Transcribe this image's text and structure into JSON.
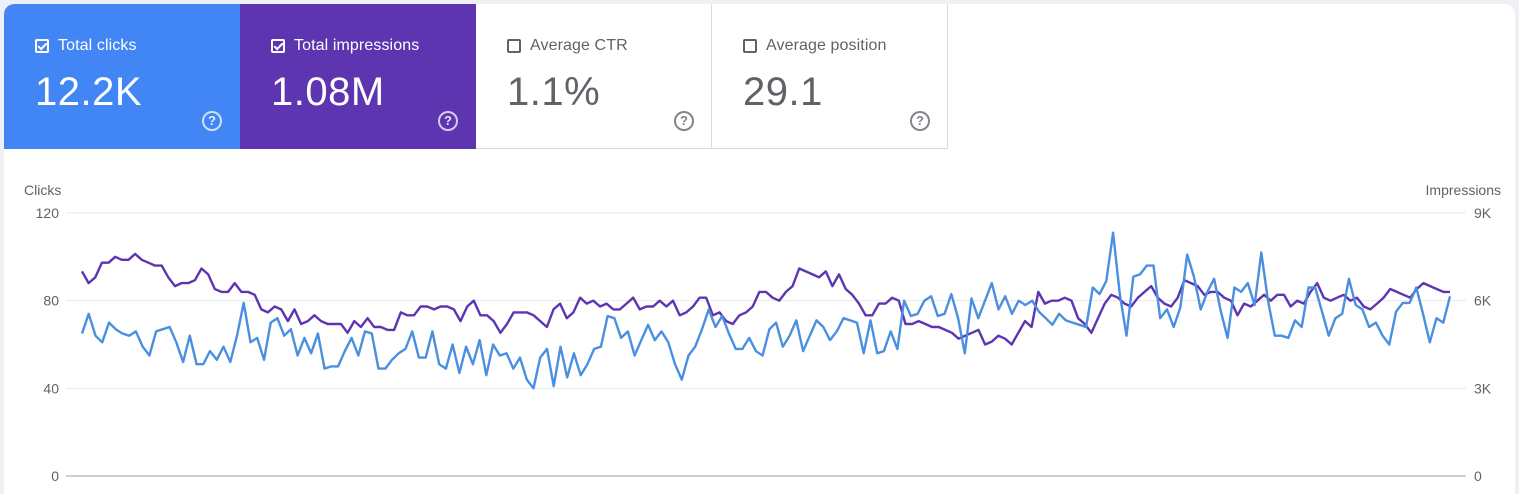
{
  "metrics": [
    {
      "label": "Total clicks",
      "value": "12.2K",
      "selected": true,
      "color": "#4285f4"
    },
    {
      "label": "Total impressions",
      "value": "1.08M",
      "selected": true,
      "color": "#5e35b1"
    },
    {
      "label": "Average CTR",
      "value": "1.1%",
      "selected": false,
      "color": "#ffffff"
    },
    {
      "label": "Average position",
      "value": "29.1",
      "selected": false,
      "color": "#ffffff"
    }
  ],
  "help_icon": "help-circle-icon",
  "chart_data": {
    "type": "line",
    "legend": "none",
    "grid": true,
    "left_axis": {
      "label": "Clicks",
      "range": [
        0,
        120
      ],
      "ticks": [
        "0",
        "40",
        "80",
        "120"
      ]
    },
    "right_axis": {
      "label": "Impressions",
      "range": [
        0,
        9000
      ],
      "ticks": [
        "0",
        "3K",
        "6K",
        "9K"
      ]
    },
    "series": [
      {
        "axis": "left",
        "color": "#4a8fe0",
        "values": [
          65,
          74,
          64,
          61,
          70,
          67,
          65,
          64,
          66,
          59,
          55,
          66,
          67,
          68,
          61,
          52,
          64,
          51,
          51,
          57,
          53,
          59,
          52,
          64,
          79,
          61,
          63,
          53,
          70,
          72,
          64,
          67,
          55,
          63,
          56,
          65,
          49,
          50,
          50,
          57,
          63,
          55,
          66,
          65,
          49,
          49,
          53,
          56,
          58,
          66,
          54,
          54,
          66,
          51,
          49,
          60,
          47,
          59,
          51,
          62,
          46,
          60,
          55,
          56,
          49,
          54,
          44,
          40,
          54,
          58,
          41,
          59,
          45,
          56,
          46,
          51,
          58,
          59,
          73,
          72,
          63,
          66,
          55,
          62,
          69,
          62,
          66,
          61,
          51,
          44,
          55,
          59,
          67,
          76,
          68,
          73,
          65,
          58,
          58,
          63,
          57,
          55,
          67,
          70,
          59,
          64,
          71,
          57,
          64,
          71,
          68,
          62,
          66,
          72,
          71,
          70,
          56,
          71,
          56,
          57,
          66,
          58,
          80,
          73,
          74,
          80,
          82,
          73,
          74,
          83,
          72,
          56,
          81,
          72,
          80,
          88,
          76,
          82,
          74,
          80,
          78,
          80,
          75,
          72,
          69,
          74,
          71,
          70,
          69,
          68,
          86,
          83,
          89,
          111,
          83,
          64,
          91,
          92,
          96,
          96,
          72,
          76,
          68,
          77,
          101,
          91,
          76,
          84,
          90,
          75,
          63,
          86,
          84,
          88,
          78,
          102,
          80,
          64,
          64,
          63,
          71,
          68,
          86,
          86,
          75,
          64,
          72,
          74,
          90,
          78,
          76,
          68,
          70,
          64,
          60,
          75,
          79,
          79,
          86,
          74,
          61,
          72,
          70,
          82
        ]
      },
      {
        "axis": "right",
        "color": "#5e35b1",
        "values": [
          7000,
          6600,
          6800,
          7300,
          7300,
          7500,
          7400,
          7400,
          7600,
          7400,
          7300,
          7200,
          7200,
          6800,
          6500,
          6600,
          6600,
          6700,
          7100,
          6900,
          6400,
          6300,
          6300,
          6600,
          6300,
          6300,
          6200,
          5700,
          5600,
          5800,
          5700,
          5300,
          5700,
          5200,
          5300,
          5500,
          5300,
          5200,
          5200,
          5200,
          4900,
          5300,
          5100,
          5400,
          5100,
          5100,
          5000,
          5000,
          5600,
          5500,
          5500,
          5800,
          5800,
          5700,
          5800,
          5800,
          5700,
          5300,
          5800,
          6000,
          5500,
          5500,
          5300,
          4900,
          5200,
          5600,
          5600,
          5600,
          5500,
          5300,
          5100,
          5700,
          5900,
          5400,
          5600,
          6100,
          5900,
          6000,
          5800,
          5900,
          5700,
          5700,
          5900,
          6100,
          5700,
          5800,
          5800,
          6000,
          5800,
          6000,
          5500,
          5600,
          5800,
          6100,
          6100,
          5500,
          5600,
          5300,
          5200,
          5500,
          5600,
          5800,
          6300,
          6300,
          6100,
          6000,
          6300,
          6500,
          7100,
          7000,
          6900,
          6800,
          7000,
          6500,
          6900,
          6400,
          6200,
          5900,
          5500,
          5500,
          5900,
          5900,
          6100,
          6000,
          5200,
          5200,
          5300,
          5200,
          5100,
          5100,
          5000,
          4900,
          4700,
          4800,
          4900,
          5000,
          4500,
          4600,
          4800,
          4700,
          4500,
          4900,
          5300,
          5100,
          6300,
          5900,
          6000,
          6000,
          6100,
          6000,
          5400,
          5200,
          4900,
          5400,
          5900,
          6200,
          6100,
          5900,
          5800,
          6100,
          6300,
          6500,
          6100,
          5900,
          5800,
          6100,
          6700,
          6600,
          6500,
          6200,
          6300,
          6300,
          6100,
          6000,
          5500,
          5900,
          5800,
          6000,
          6200,
          6000,
          6200,
          6200,
          5800,
          6000,
          5900,
          6300,
          6600,
          6100,
          6000,
          6100,
          6200,
          6000,
          6100,
          5800,
          5700,
          5900,
          6100,
          6400,
          6300,
          6200,
          6100,
          6400,
          6600,
          6500,
          6400,
          6300,
          6300
        ]
      }
    ]
  }
}
